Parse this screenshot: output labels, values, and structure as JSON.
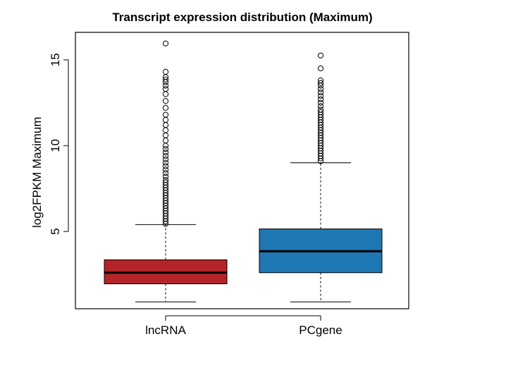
{
  "chart_data": {
    "type": "boxplot",
    "title": "Transcript expression distribution (Maximum)",
    "xlabel": "",
    "ylabel": "log2FPKM Maximum",
    "categories": [
      "lncRNA",
      "PCgene"
    ],
    "yticks": [
      5,
      10,
      15
    ],
    "ylim": [
      0.5,
      16.6
    ],
    "grid": false,
    "legend": "none",
    "series": [
      {
        "category": "lncRNA",
        "whisker_low": 0.9,
        "q1": 1.95,
        "median": 2.6,
        "q3": 3.35,
        "whisker_high": 5.4,
        "color": "#B22428",
        "outliers": [
          5.45,
          5.6,
          5.75,
          5.9,
          6.05,
          6.2,
          6.35,
          6.5,
          6.65,
          6.8,
          6.95,
          7.1,
          7.25,
          7.4,
          7.55,
          7.7,
          7.85,
          8.0,
          8.2,
          8.4,
          8.6,
          8.8,
          9.0,
          9.2,
          9.4,
          9.6,
          9.8,
          10.0,
          10.3,
          10.6,
          10.9,
          11.2,
          11.5,
          11.8,
          12.2,
          12.6,
          13.0,
          13.3,
          13.5,
          13.7,
          13.85,
          14.0,
          14.3,
          15.95
        ]
      },
      {
        "category": "PCgene",
        "whisker_low": 0.9,
        "q1": 2.6,
        "median": 3.85,
        "q3": 5.15,
        "whisker_high": 9.0,
        "color": "#1F77B4",
        "outliers": [
          9.1,
          9.25,
          9.4,
          9.55,
          9.7,
          9.85,
          10.0,
          10.15,
          10.3,
          10.45,
          10.6,
          10.75,
          10.9,
          11.05,
          11.2,
          11.35,
          11.5,
          11.65,
          11.8,
          11.95,
          12.1,
          12.3,
          12.5,
          12.7,
          12.9,
          13.1,
          13.3,
          13.5,
          13.65,
          13.8,
          14.5,
          15.25
        ]
      }
    ]
  }
}
